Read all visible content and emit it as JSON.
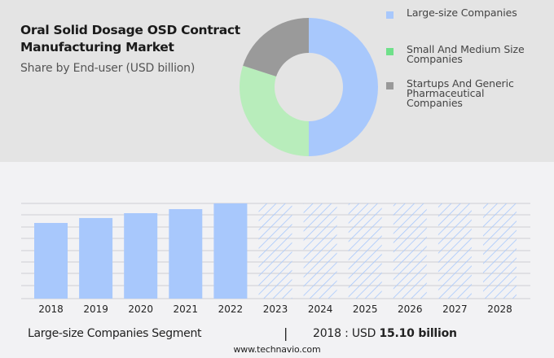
{
  "header": {
    "title_line1": "Oral Solid Dosage OSD Contract",
    "title_line2": "Manufacturing Market",
    "subtitle": "Share by End-user (USD billion)"
  },
  "chart_data": [
    {
      "type": "pie",
      "variant": "donut",
      "title": "Share by End-user (USD billion)",
      "legend_position": "right",
      "slices": [
        {
          "label": "Large-size Companies",
          "value": 50,
          "color": "#a8c8fc"
        },
        {
          "label": "Small And Medium Size Companies",
          "value": 30,
          "color": "#b8edbb"
        },
        {
          "label": "Startups And Generic Pharmaceutical Companies",
          "value": 20,
          "color": "#9a9a9a"
        }
      ],
      "legend": [
        {
          "lines": [
            "Large-size Companies"
          ],
          "color": "#a8c8fc"
        },
        {
          "lines": [
            "Small And Medium Size",
            "Companies"
          ],
          "color": "#6fe08a"
        },
        {
          "lines": [
            "Startups And Generic",
            "Pharmaceutical",
            "Companies"
          ],
          "color": "#999999"
        }
      ]
    },
    {
      "type": "bar",
      "title": "Large-size Companies Segment",
      "categories": [
        "2018",
        "2019",
        "2020",
        "2021",
        "2022",
        "2023",
        "2024",
        "2025",
        "2026",
        "2027",
        "2028"
      ],
      "values": [
        15.1,
        16.08,
        17.05,
        17.86,
        19.0,
        null,
        null,
        null,
        null,
        null,
        null
      ],
      "forecast_categories": [
        "2023",
        "2024",
        "2025",
        "2026",
        "2027",
        "2028"
      ],
      "ylim": [
        0,
        19.0
      ],
      "grid": true,
      "gridline_count": 8,
      "color": "#a8c8fc",
      "forecast_pattern": "hatched"
    }
  ],
  "footer": {
    "segment_label": "Large-size Companies Segment",
    "separator": "|",
    "value_prefix": "2018 : USD",
    "value_bold": "15.10 billion",
    "source": "www.technavio.com"
  }
}
